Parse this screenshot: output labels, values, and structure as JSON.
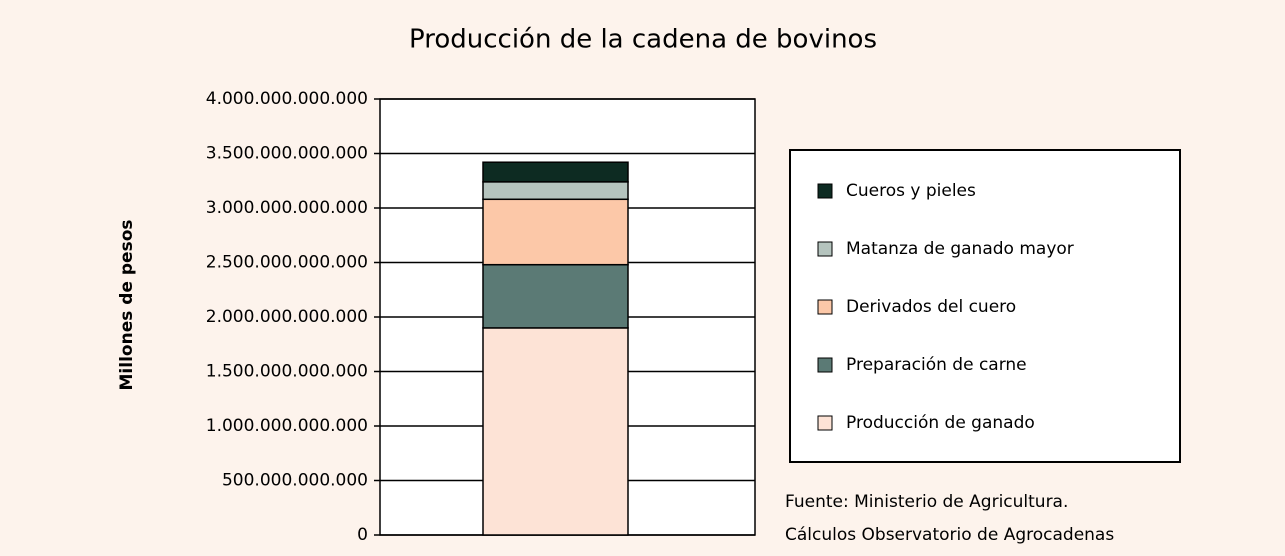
{
  "chart_data": {
    "type": "stacked_bar",
    "title": "Producción de la cadena de bovinos",
    "y_label": "Millones de pesos",
    "categories": [
      null
    ],
    "series": [
      {
        "name": "Producción de ganado",
        "color": "#fde3d6",
        "values": [
          1900000000000
        ]
      },
      {
        "name": "Preparación de carne",
        "color": "#5b7a75",
        "values": [
          580000000000
        ]
      },
      {
        "name": "Derivados del cuero",
        "color": "#fcc8a8",
        "values": [
          600000000000
        ]
      },
      {
        "name": "Matanza de ganado mayor",
        "color": "#b5c4be",
        "values": [
          160000000000
        ]
      },
      {
        "name": "Cueros y pieles",
        "color": "#0d2b22",
        "values": [
          180000000000
        ]
      }
    ],
    "ylim": [
      0,
      4000000000000
    ],
    "yticks": [
      0,
      {
        "value": 500000000000,
        "label": "500.000.000.000"
      },
      {
        "value": 1000000000000,
        "label": "1.000.000.000.000"
      },
      {
        "value": 1500000000000,
        "label": "1.500.000.000.000"
      },
      {
        "value": 2000000000000,
        "label": "2.000.000.000.000"
      },
      {
        "value": 2500000000000,
        "label": "2.500.000.000.000"
      },
      {
        "value": 3000000000000,
        "label": "3.000.000.000.000"
      },
      {
        "value": 3500000000000,
        "label": "3.500.000.000.000"
      },
      {
        "value": 4000000000000,
        "label": "4.000.000.000.000"
      }
    ],
    "grid": true,
    "legend": "right",
    "annotations": [
      "Fuente: Ministerio de Agricultura.",
      "Cálculos Observatorio de Agrocadenas"
    ]
  }
}
